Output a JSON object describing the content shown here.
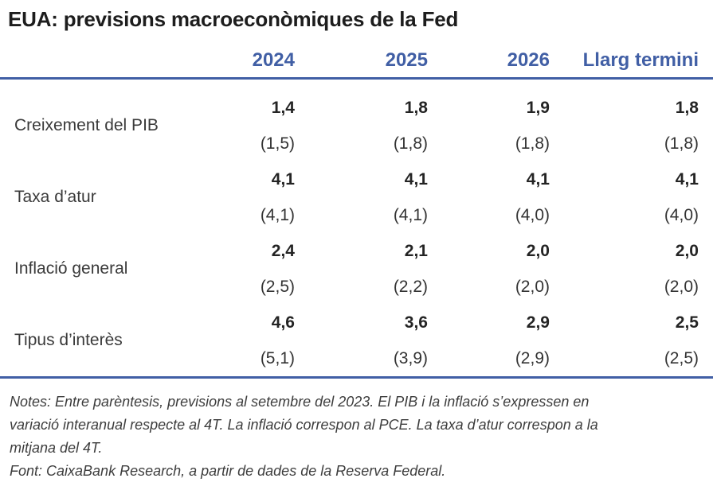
{
  "title": "EUA: previsions macroeconòmiques de la Fed",
  "table": {
    "column_headers": [
      "2024",
      "2025",
      "2026",
      "Llarg termini"
    ],
    "rows": [
      {
        "label": "Creixement del PIB",
        "values": [
          "1,4",
          "1,8",
          "1,9",
          "1,8"
        ],
        "previous": [
          "(1,5)",
          "(1,8)",
          "(1,8)",
          "(1,8)"
        ]
      },
      {
        "label": "Taxa d’atur",
        "values": [
          "4,1",
          "4,1",
          "4,1",
          "4,1"
        ],
        "previous": [
          "(4,1)",
          "(4,1)",
          "(4,0)",
          "(4,0)"
        ]
      },
      {
        "label": "Inflació general",
        "values": [
          "2,4",
          "2,1",
          "2,0",
          "2,0"
        ],
        "previous": [
          "(2,5)",
          "(2,2)",
          "(2,0)",
          "(2,0)"
        ]
      },
      {
        "label": "Tipus d’interès",
        "values": [
          "4,6",
          "3,6",
          "2,9",
          "2,5"
        ],
        "previous": [
          "(5,1)",
          "(3,9)",
          "(2,9)",
          "(2,5)"
        ]
      }
    ]
  },
  "notes": {
    "lines": [
      "Notes: Entre parèntesis, previsions al setembre del 2023. El PIB i la inflació s’expressen en",
      "variació interanual respecte al 4T. La inflació correspon al PCE. La taxa d’atur correspon a la",
      "mitjana del 4T."
    ],
    "source": "Font: CaixaBank Research, a partir de dades de la Reserva Federal."
  },
  "colors": {
    "accent_blue": "#415fa5",
    "title_color": "#1d1d1d",
    "label_color": "#3a3a3a",
    "value_color": "#242424",
    "notes_color": "#3d3d3d"
  },
  "chart_data": {
    "type": "table",
    "title": "EUA: previsions macroeconòmiques de la Fed",
    "columns": [
      "",
      "2024",
      "2025",
      "2026",
      "Llarg termini"
    ],
    "rows": [
      {
        "label": "Creixement del PIB",
        "current": [
          1.4,
          1.8,
          1.9,
          1.8
        ],
        "previous_sep_2023": [
          1.5,
          1.8,
          1.8,
          1.8
        ]
      },
      {
        "label": "Taxa d’atur",
        "current": [
          4.1,
          4.1,
          4.1,
          4.1
        ],
        "previous_sep_2023": [
          4.1,
          4.1,
          4.0,
          4.0
        ]
      },
      {
        "label": "Inflació general",
        "current": [
          2.4,
          2.1,
          2.0,
          2.0
        ],
        "previous_sep_2023": [
          2.5,
          2.2,
          2.0,
          2.0
        ]
      },
      {
        "label": "Tipus d’interès",
        "current": [
          4.6,
          3.6,
          2.9,
          2.5
        ],
        "previous_sep_2023": [
          5.1,
          3.9,
          2.9,
          2.5
        ]
      }
    ],
    "notes": "Entre parèntesis, previsions al setembre del 2023. El PIB i la inflació s’expressen en variació interanual respecte al 4T. La inflació correspon al PCE. La taxa d’atur correspon a la mitjana del 4T.",
    "source": "Font: CaixaBank Research, a partir de dades de la Reserva Federal."
  }
}
